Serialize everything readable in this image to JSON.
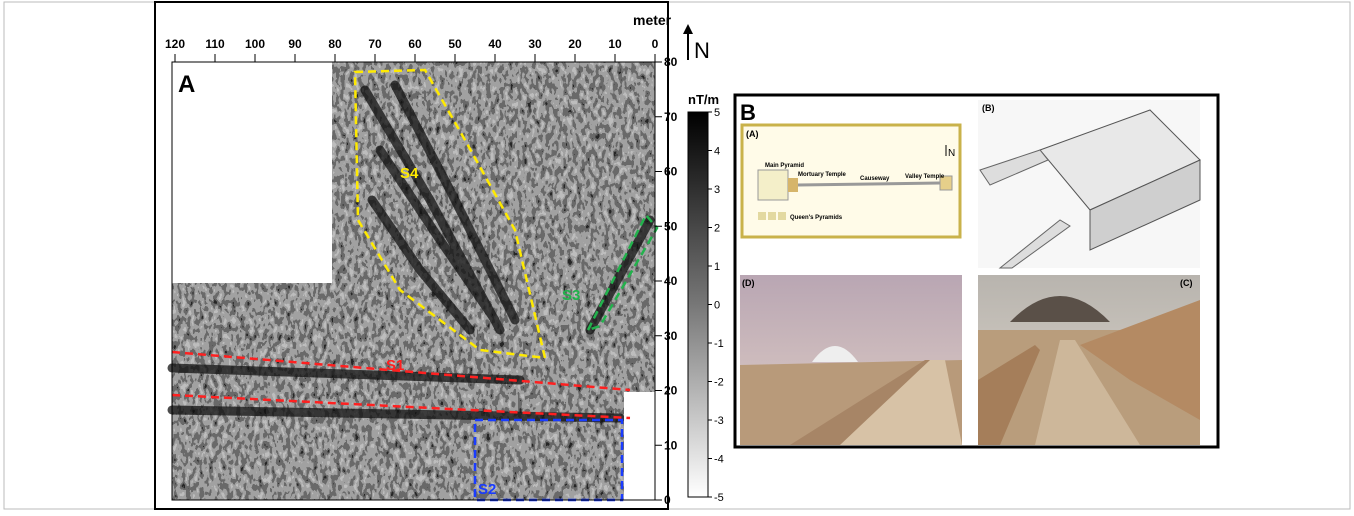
{
  "panel_a": {
    "label": "A",
    "x_axis_title": "meter",
    "x_ticks": [
      120,
      110,
      100,
      90,
      80,
      70,
      60,
      50,
      40,
      30,
      20,
      10,
      0
    ],
    "y_ticks": [
      80,
      70,
      60,
      50,
      40,
      30,
      20,
      10,
      0
    ],
    "north": "N",
    "colorbar_unit": "nT/m",
    "colorbar_ticks": [
      5,
      4,
      3,
      2,
      1,
      0,
      -1,
      -2,
      -3,
      -4,
      -5
    ],
    "features": [
      "S4",
      "S3",
      "S1",
      "S2"
    ]
  },
  "panel_b": {
    "label": "B",
    "plan": {
      "label": "(A)",
      "north": "N",
      "labels": [
        "Main Pyramid",
        "Mortuary Temple",
        "Causeway",
        "Valley Temple",
        "Queen's Pyramids"
      ]
    },
    "photos": [
      "(B)",
      "(D)",
      "(C)"
    ]
  }
}
